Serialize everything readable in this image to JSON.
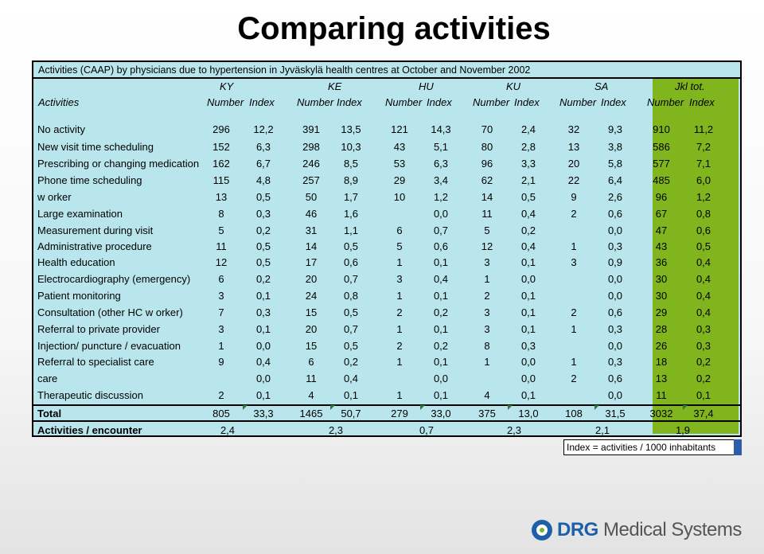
{
  "title": "Comparing activities",
  "caption": "Activities (CAAP) by physicians due to hypertension in Jyväskylä health centres at October and November 2002",
  "group_headers": [
    "KY",
    "KE",
    "HU",
    "KU",
    "SA",
    "Jkl tot."
  ],
  "row_header_label": "Activities",
  "sub_headers": [
    "Number",
    "Index",
    "Number",
    "Index",
    "Number",
    "Index",
    "Number",
    "Index",
    "Number",
    "Index",
    "Number",
    "Index"
  ],
  "rows": [
    {
      "label": "No activity",
      "values": [
        "296",
        "12,2",
        "391",
        "13,5",
        "121",
        "14,3",
        "70",
        "2,4",
        "32",
        "9,3",
        "910",
        "11,2"
      ]
    },
    {
      "label": "New  visit time scheduling",
      "values": [
        "152",
        "6,3",
        "298",
        "10,3",
        "43",
        "5,1",
        "80",
        "2,8",
        "13",
        "3,8",
        "586",
        "7,2"
      ]
    },
    {
      "label": "Prescribing or changing medication",
      "values": [
        "162",
        "6,7",
        "246",
        "8,5",
        "53",
        "6,3",
        "96",
        "3,3",
        "20",
        "5,8",
        "577",
        "7,1"
      ]
    },
    {
      "label": "Phone time scheduling",
      "values": [
        "115",
        "4,8",
        "257",
        "8,9",
        "29",
        "3,4",
        "62",
        "2,1",
        "22",
        "6,4",
        "485",
        "6,0"
      ]
    },
    {
      "label": "w orker",
      "values": [
        "13",
        "0,5",
        "50",
        "1,7",
        "10",
        "1,2",
        "14",
        "0,5",
        "9",
        "2,6",
        "96",
        "1,2"
      ]
    },
    {
      "label": "Large examination",
      "values": [
        "8",
        "0,3",
        "46",
        "1,6",
        "",
        "0,0",
        "11",
        "0,4",
        "2",
        "0,6",
        "67",
        "0,8"
      ]
    },
    {
      "label": "Measurement during visit",
      "values": [
        "5",
        "0,2",
        "31",
        "1,1",
        "6",
        "0,7",
        "5",
        "0,2",
        "",
        "0,0",
        "47",
        "0,6"
      ]
    },
    {
      "label": "Administrative procedure",
      "values": [
        "11",
        "0,5",
        "14",
        "0,5",
        "5",
        "0,6",
        "12",
        "0,4",
        "1",
        "0,3",
        "43",
        "0,5"
      ]
    },
    {
      "label": "Health education",
      "values": [
        "12",
        "0,5",
        "17",
        "0,6",
        "1",
        "0,1",
        "3",
        "0,1",
        "3",
        "0,9",
        "36",
        "0,4"
      ]
    },
    {
      "label": "Electrocardiography (emergency)",
      "values": [
        "6",
        "0,2",
        "20",
        "0,7",
        "3",
        "0,4",
        "1",
        "0,0",
        "",
        "0,0",
        "30",
        "0,4"
      ]
    },
    {
      "label": "Patient monitoring",
      "values": [
        "3",
        "0,1",
        "24",
        "0,8",
        "1",
        "0,1",
        "2",
        "0,1",
        "",
        "0,0",
        "30",
        "0,4"
      ]
    },
    {
      "label": "Consultation (other HC w orker)",
      "values": [
        "7",
        "0,3",
        "15",
        "0,5",
        "2",
        "0,2",
        "3",
        "0,1",
        "2",
        "0,6",
        "29",
        "0,4"
      ]
    },
    {
      "label": "Referral to private provider",
      "values": [
        "3",
        "0,1",
        "20",
        "0,7",
        "1",
        "0,1",
        "3",
        "0,1",
        "1",
        "0,3",
        "28",
        "0,3"
      ]
    },
    {
      "label": "Injection/ puncture / evacuation",
      "values": [
        "1",
        "0,0",
        "15",
        "0,5",
        "2",
        "0,2",
        "8",
        "0,3",
        "",
        "0,0",
        "26",
        "0,3"
      ]
    },
    {
      "label": "Referral to specialist care",
      "values": [
        "9",
        "0,4",
        "6",
        "0,2",
        "1",
        "0,1",
        "1",
        "0,0",
        "1",
        "0,3",
        "18",
        "0,2"
      ]
    },
    {
      "label": "care",
      "values": [
        "",
        "0,0",
        "11",
        "0,4",
        "",
        "0,0",
        "",
        "0,0",
        "2",
        "0,6",
        "13",
        "0,2"
      ]
    },
    {
      "label": "Therapeutic discussion",
      "values": [
        "2",
        "0,1",
        "4",
        "0,1",
        "1",
        "0,1",
        "4",
        "0,1",
        "",
        "0,0",
        "11",
        "0,1"
      ]
    }
  ],
  "total": {
    "label": "Total",
    "values": [
      "805",
      "33,3",
      "1465",
      "50,7",
      "279",
      "33,0",
      "375",
      "13,0",
      "108",
      "31,5",
      "3032",
      "37,4"
    ]
  },
  "per_encounter": {
    "label": "Activities / encounter",
    "values": [
      "2,4",
      "2,3",
      "0,7",
      "2,3",
      "2,1",
      "1,9"
    ]
  },
  "footnote": "Index = activities / 1000 inhabitants",
  "logo": {
    "brand": "DRG",
    "rest": " Medical Systems"
  },
  "colors": {
    "table_bg": "#b9e6ec",
    "total_col": "#80b51e",
    "marker": "#2a7a3a",
    "logo": "#1d5fa8"
  }
}
